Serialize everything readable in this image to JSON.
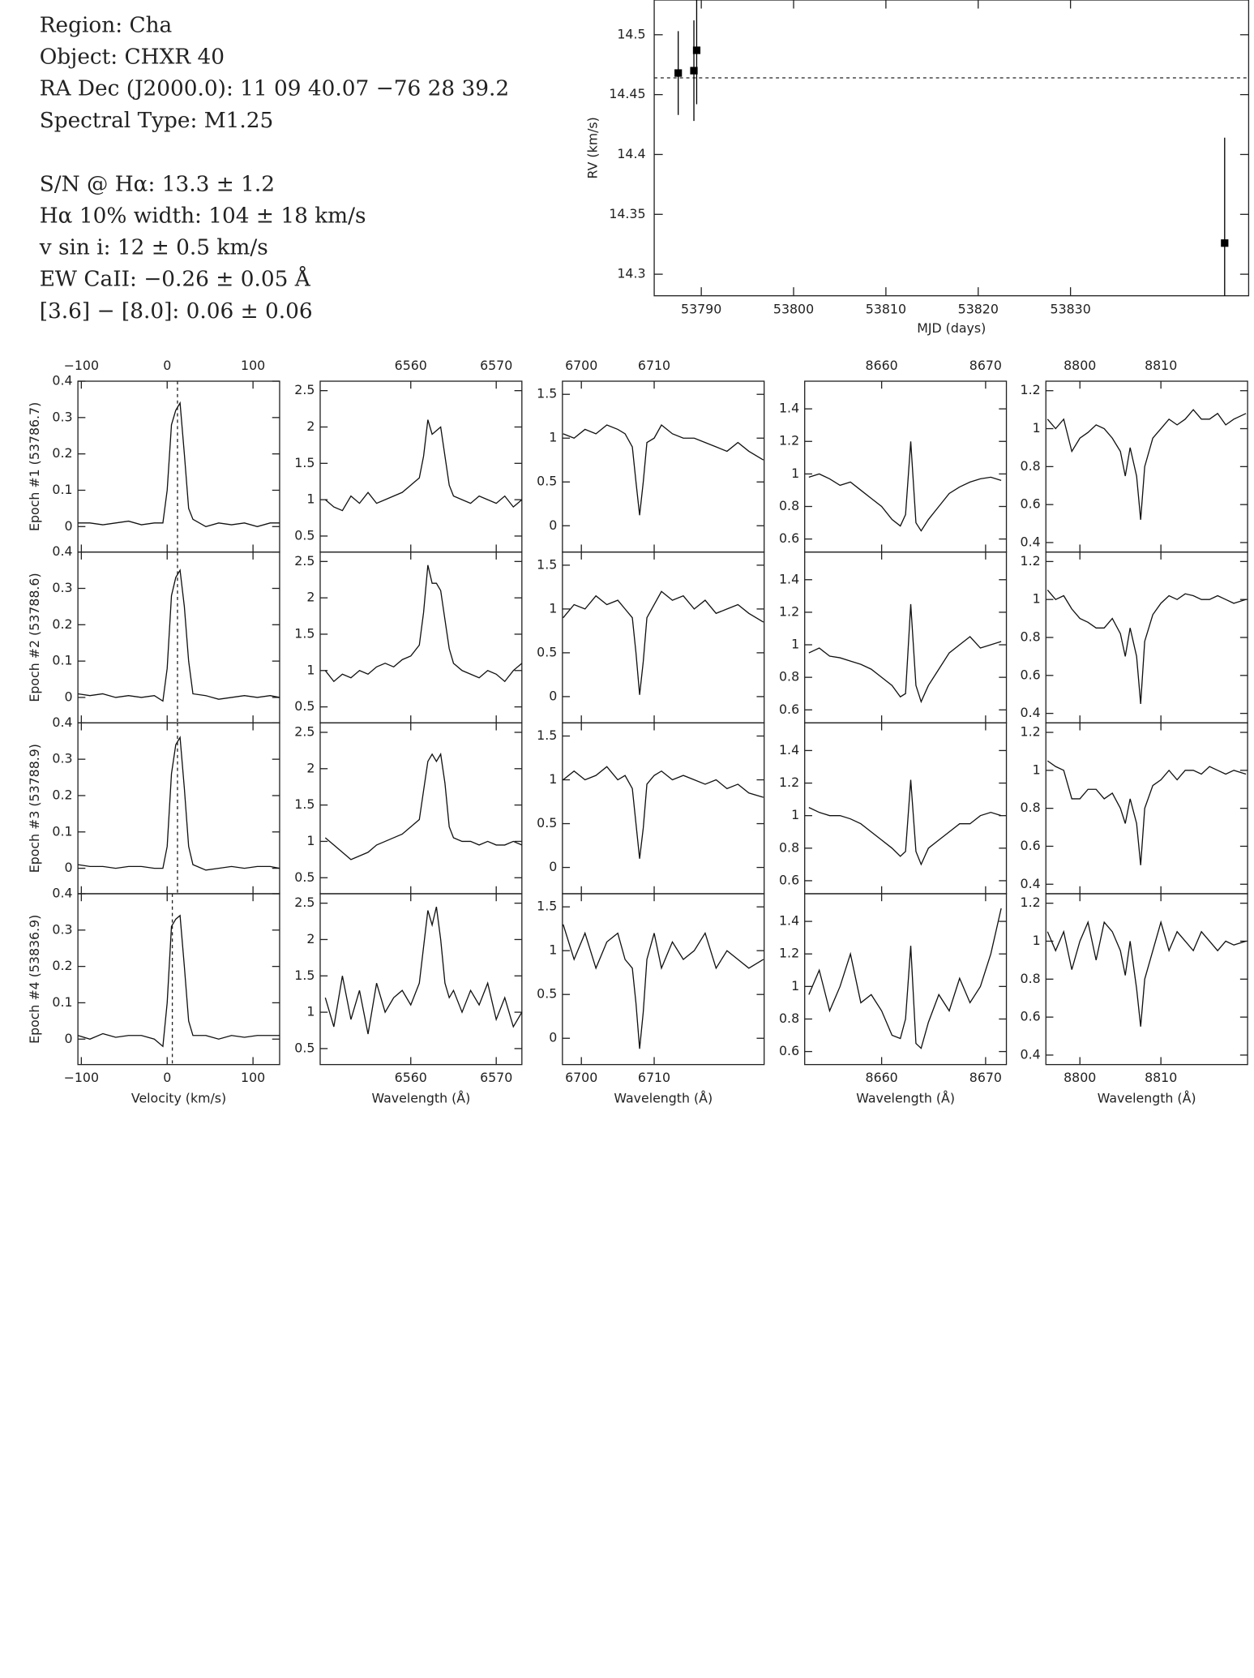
{
  "info": {
    "lines": [
      "Region: Cha",
      "Object: CHXR 40",
      "RA Dec (J2000.0): 11 09 40.07 −76 28 39.2",
      "Spectral Type: M1.25",
      "S/N @ Hα: 13.3 ± 1.2",
      "Hα 10% width: 104 ± 18 km/s",
      "v sin i: 12 ± 0.5 km/s",
      "EW CaII: −0.26 ± 0.05 Å",
      "[3.6] − [8.0]: 0.06 ± 0.06"
    ]
  },
  "chart_data": [
    {
      "type": "scatter",
      "xlabel": "MJD (days)",
      "ylabel": "RV (km/s)",
      "color": "#000000",
      "x": [
        53787.5,
        53789.2,
        53789.5,
        53846.7
      ],
      "values": [
        14.468,
        14.47,
        14.487,
        14.326
      ],
      "errors": [
        0.035,
        0.042,
        0.045,
        0.088
      ],
      "hline": 14.464,
      "xlim": [
        53784.9,
        53849.3
      ],
      "ylim": [
        14.282,
        14.529
      ],
      "xticks": [
        53790,
        53800,
        53810,
        53820,
        53830
      ],
      "yticks": [
        14.3,
        14.35,
        14.4,
        14.45,
        14.5
      ]
    },
    {
      "type": "line",
      "xlabel": "Velocity (km/s)",
      "xlim": [
        -104,
        131
      ],
      "ylim": [
        -0.07,
        0.4
      ],
      "xticks": [
        {
          "value": -100,
          "label": "−100"
        },
        0,
        100
      ],
      "yticks": [
        0,
        0.1,
        0.2,
        0.3,
        0.4
      ],
      "x": [
        -104,
        -90,
        -75,
        -60,
        -45,
        -30,
        -15,
        -5,
        0,
        5,
        10,
        15,
        20,
        25,
        30,
        45,
        60,
        75,
        90,
        105,
        120,
        131
      ],
      "series": [
        {
          "name": "Epoch #1 (53786.7)",
          "vline": 12,
          "values": [
            0.01,
            0.01,
            0.005,
            0.01,
            0.015,
            0.005,
            0.01,
            0.01,
            0.1,
            0.28,
            0.32,
            0.34,
            0.2,
            0.05,
            0.02,
            0.0,
            0.01,
            0.005,
            0.01,
            0.0,
            0.01,
            0.01
          ]
        },
        {
          "name": "Epoch #2 (53788.6)",
          "vline": 12,
          "values": [
            0.01,
            0.005,
            0.01,
            0.0,
            0.005,
            0.0,
            0.005,
            -0.01,
            0.08,
            0.28,
            0.33,
            0.35,
            0.25,
            0.1,
            0.01,
            0.005,
            -0.005,
            0.0,
            0.005,
            0.0,
            0.005,
            0.0
          ]
        },
        {
          "name": "Epoch #3 (53788.9)",
          "vline": 12,
          "values": [
            0.01,
            0.005,
            0.005,
            0.0,
            0.005,
            0.005,
            0.0,
            0.0,
            0.06,
            0.26,
            0.34,
            0.36,
            0.22,
            0.06,
            0.01,
            -0.005,
            0.0,
            0.005,
            0.0,
            0.005,
            0.005,
            0.0
          ]
        },
        {
          "name": "Epoch #4 (53836.9)",
          "vline": 6,
          "values": [
            0.01,
            0.0,
            0.015,
            0.005,
            0.01,
            0.01,
            0.0,
            -0.02,
            0.1,
            0.31,
            0.33,
            0.34,
            0.2,
            0.05,
            0.01,
            0.01,
            0.0,
            0.01,
            0.005,
            0.01,
            0.01,
            0.01
          ]
        }
      ]
    },
    {
      "type": "line",
      "xlabel": "Wavelength (Å)",
      "xlim": [
        6549.4,
        6573.0
      ],
      "ylim": [
        0.28,
        2.63
      ],
      "xticks": [
        6560,
        6570
      ],
      "yticks": [
        0.5,
        1,
        1.5,
        2,
        2.5
      ],
      "x": [
        6550,
        6551,
        6552,
        6553,
        6554,
        6555,
        6556,
        6557,
        6558,
        6559,
        6560,
        6561,
        6561.5,
        6562,
        6562.5,
        6563,
        6563.5,
        6564,
        6564.5,
        6565,
        6566,
        6567,
        6568,
        6569,
        6570,
        6571,
        6572,
        6573
      ],
      "series": [
        {
          "values": [
            1.0,
            0.9,
            0.85,
            1.05,
            0.95,
            1.1,
            0.95,
            1.0,
            1.05,
            1.1,
            1.2,
            1.3,
            1.6,
            2.1,
            1.9,
            1.95,
            2.0,
            1.6,
            1.2,
            1.05,
            1.0,
            0.95,
            1.05,
            1.0,
            0.95,
            1.05,
            0.9,
            1.0
          ]
        },
        {
          "values": [
            1.0,
            0.85,
            0.95,
            0.9,
            1.0,
            0.95,
            1.05,
            1.1,
            1.05,
            1.15,
            1.2,
            1.35,
            1.8,
            2.45,
            2.2,
            2.2,
            2.1,
            1.7,
            1.3,
            1.1,
            1.0,
            0.95,
            0.9,
            1.0,
            0.95,
            0.85,
            1.0,
            1.1
          ]
        },
        {
          "values": [
            1.05,
            0.95,
            0.85,
            0.75,
            0.8,
            0.85,
            0.95,
            1.0,
            1.05,
            1.1,
            1.2,
            1.3,
            1.7,
            2.1,
            2.2,
            2.1,
            2.2,
            1.8,
            1.2,
            1.05,
            1.0,
            1.0,
            0.95,
            1.0,
            0.95,
            0.95,
            1.0,
            0.95
          ]
        },
        {
          "values": [
            1.2,
            0.8,
            1.5,
            0.9,
            1.3,
            0.7,
            1.4,
            1.0,
            1.2,
            1.3,
            1.1,
            1.4,
            1.9,
            2.4,
            2.2,
            2.45,
            2.0,
            1.4,
            1.2,
            1.3,
            1.0,
            1.3,
            1.1,
            1.4,
            0.9,
            1.2,
            0.8,
            1.0
          ]
        }
      ]
    },
    {
      "type": "line",
      "xlabel": "Wavelength (Å)",
      "xlim": [
        6697.4,
        6725.1
      ],
      "ylim": [
        -0.3,
        1.65
      ],
      "xticks": [
        6700,
        6710
      ],
      "yticks": [
        0,
        0.5,
        1,
        1.5
      ],
      "x": [
        6697.5,
        6699,
        6700.5,
        6702,
        6703.5,
        6705,
        6706,
        6707,
        6707.5,
        6708,
        6708.5,
        6709,
        6710,
        6711,
        6712.5,
        6714,
        6715.5,
        6717,
        6718.5,
        6720,
        6721.5,
        6723,
        6725
      ],
      "series": [
        {
          "values": [
            1.05,
            1.0,
            1.1,
            1.05,
            1.15,
            1.1,
            1.05,
            0.9,
            0.5,
            0.12,
            0.5,
            0.95,
            1.0,
            1.15,
            1.05,
            1.0,
            1.0,
            0.95,
            0.9,
            0.85,
            0.95,
            0.85,
            0.75
          ]
        },
        {
          "values": [
            0.9,
            1.05,
            1.0,
            1.15,
            1.05,
            1.1,
            1.0,
            0.9,
            0.5,
            0.02,
            0.4,
            0.9,
            1.05,
            1.2,
            1.1,
            1.15,
            1.0,
            1.1,
            0.95,
            1.0,
            1.05,
            0.95,
            0.85
          ]
        },
        {
          "values": [
            1.0,
            1.1,
            1.0,
            1.05,
            1.15,
            1.0,
            1.05,
            0.9,
            0.5,
            0.1,
            0.45,
            0.95,
            1.05,
            1.1,
            1.0,
            1.05,
            1.0,
            0.95,
            1.0,
            0.9,
            0.95,
            0.85,
            0.8
          ]
        },
        {
          "values": [
            1.3,
            0.9,
            1.2,
            0.8,
            1.1,
            1.2,
            0.9,
            0.8,
            0.4,
            -0.12,
            0.3,
            0.9,
            1.2,
            0.8,
            1.1,
            0.9,
            1.0,
            1.2,
            0.8,
            1.0,
            0.9,
            0.8,
            0.9
          ]
        }
      ]
    },
    {
      "type": "line",
      "xlabel": "Wavelength (Å)",
      "xlim": [
        8652.6,
        8672.0
      ],
      "ylim": [
        0.52,
        1.57
      ],
      "xticks": [
        8660,
        8670
      ],
      "yticks": [
        0.6,
        0.8,
        1,
        1.2,
        1.4
      ],
      "x": [
        8653,
        8654,
        8655,
        8656,
        8657,
        8658,
        8659,
        8660,
        8661,
        8661.8,
        8662.3,
        8662.8,
        8663.3,
        8663.8,
        8664.5,
        8665.5,
        8666.5,
        8667.5,
        8668.5,
        8669.5,
        8670.5,
        8671.5
      ],
      "series": [
        {
          "values": [
            0.98,
            1.0,
            0.97,
            0.93,
            0.95,
            0.9,
            0.85,
            0.8,
            0.72,
            0.68,
            0.75,
            1.2,
            0.7,
            0.65,
            0.72,
            0.8,
            0.88,
            0.92,
            0.95,
            0.97,
            0.98,
            0.96
          ]
        },
        {
          "values": [
            0.95,
            0.98,
            0.93,
            0.92,
            0.9,
            0.88,
            0.85,
            0.8,
            0.75,
            0.68,
            0.7,
            1.25,
            0.75,
            0.65,
            0.75,
            0.85,
            0.95,
            1.0,
            1.05,
            0.98,
            1.0,
            1.02
          ]
        },
        {
          "values": [
            1.05,
            1.02,
            1.0,
            1.0,
            0.98,
            0.95,
            0.9,
            0.85,
            0.8,
            0.75,
            0.78,
            1.22,
            0.78,
            0.7,
            0.8,
            0.85,
            0.9,
            0.95,
            0.95,
            1.0,
            1.02,
            1.0
          ]
        },
        {
          "values": [
            0.95,
            1.1,
            0.85,
            1.0,
            1.2,
            0.9,
            0.95,
            0.85,
            0.7,
            0.68,
            0.8,
            1.25,
            0.65,
            0.62,
            0.78,
            0.95,
            0.85,
            1.05,
            0.9,
            1.0,
            1.2,
            1.48
          ]
        }
      ]
    },
    {
      "type": "line",
      "xlabel": "Wavelength (Å)",
      "xlim": [
        8795.8,
        8820.7
      ],
      "ylim": [
        0.35,
        1.25
      ],
      "xticks": [
        8800,
        8810
      ],
      "yticks": [
        0.4,
        0.6,
        0.8,
        1,
        1.2
      ],
      "x": [
        8796,
        8797,
        8798,
        8799,
        8800,
        8801,
        8802,
        8803,
        8804,
        8805,
        8805.6,
        8806.2,
        8807,
        8807.5,
        8808,
        8809,
        8810,
        8811,
        8812,
        8813,
        8814,
        8815,
        8816,
        8817,
        8818,
        8819,
        8820.5
      ],
      "series": [
        {
          "values": [
            1.05,
            1.0,
            1.05,
            0.88,
            0.95,
            0.98,
            1.02,
            1.0,
            0.95,
            0.88,
            0.75,
            0.9,
            0.75,
            0.52,
            0.8,
            0.95,
            1.0,
            1.05,
            1.02,
            1.05,
            1.1,
            1.05,
            1.05,
            1.08,
            1.02,
            1.05,
            1.08
          ]
        },
        {
          "values": [
            1.05,
            1.0,
            1.02,
            0.95,
            0.9,
            0.88,
            0.85,
            0.85,
            0.9,
            0.82,
            0.7,
            0.85,
            0.7,
            0.45,
            0.78,
            0.92,
            0.98,
            1.02,
            1.0,
            1.03,
            1.02,
            1.0,
            1.0,
            1.02,
            1.0,
            0.98,
            1.0
          ]
        },
        {
          "values": [
            1.05,
            1.02,
            1.0,
            0.85,
            0.85,
            0.9,
            0.9,
            0.85,
            0.88,
            0.8,
            0.72,
            0.85,
            0.72,
            0.5,
            0.8,
            0.92,
            0.95,
            1.0,
            0.95,
            1.0,
            1.0,
            0.98,
            1.02,
            1.0,
            0.98,
            1.0,
            0.98
          ]
        },
        {
          "values": [
            1.05,
            0.95,
            1.05,
            0.85,
            1.0,
            1.1,
            0.9,
            1.1,
            1.05,
            0.95,
            0.82,
            1.0,
            0.75,
            0.55,
            0.8,
            0.95,
            1.1,
            0.95,
            1.05,
            1.0,
            0.95,
            1.05,
            1.0,
            0.95,
            1.0,
            0.98,
            1.0
          ]
        }
      ]
    }
  ]
}
